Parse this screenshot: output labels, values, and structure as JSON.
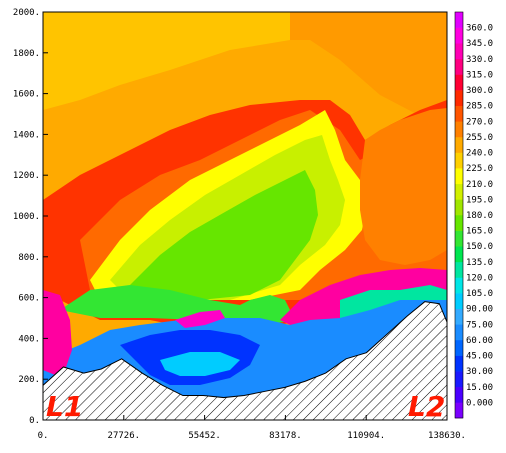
{
  "chart_data": {
    "type": "heatmap",
    "xlim": [
      0,
      138630
    ],
    "ylim": [
      0,
      2000
    ],
    "x_ticks": [
      "0.",
      "27726.",
      "55452.",
      "83178.",
      "110904.",
      "138630."
    ],
    "x_tick_values": [
      0,
      27726,
      55452,
      83178,
      110904,
      138630
    ],
    "y_ticks": [
      "0.",
      "200.",
      "400.",
      "600.",
      "800.",
      "1000.",
      "1200.",
      "1400.",
      "1600.",
      "1800.",
      "2000."
    ],
    "y_tick_values": [
      0,
      200,
      400,
      600,
      800,
      1000,
      1200,
      1400,
      1600,
      1800,
      2000
    ],
    "colorbar": {
      "levels": [
        "0.000",
        "15.00",
        "30.00",
        "45.00",
        "60.00",
        "75.00",
        "90.00",
        "105.0",
        "120.0",
        "135.0",
        "150.0",
        "165.0",
        "180.0",
        "195.0",
        "210.0",
        "225.0",
        "240.0",
        "255.0",
        "270.0",
        "285.0",
        "300.0",
        "315.0",
        "330.0",
        "345.0",
        "360.0"
      ],
      "colors": [
        "#7a00ff",
        "#4b00ff",
        "#1a1aff",
        "#0033ff",
        "#0066ff",
        "#1a8cff",
        "#33aaff",
        "#00ccff",
        "#00e6e6",
        "#00e6a0",
        "#00e650",
        "#33e633",
        "#66e600",
        "#a0e600",
        "#d2f000",
        "#ffff00",
        "#ffd000",
        "#ffaa00",
        "#ff8000",
        "#ff5500",
        "#ff2a00",
        "#ff0033",
        "#ff0080",
        "#ff00b4",
        "#ff00e0",
        "#e000ff"
      ]
    },
    "terrain": {
      "x": [
        0,
        7000,
        14000,
        20000,
        27000,
        34000,
        41000,
        48000,
        55000,
        62000,
        69000,
        76000,
        83000,
        90000,
        97000,
        104000,
        111000,
        118000,
        125000,
        131000,
        136000,
        138630
      ],
      "y": [
        170,
        260,
        230,
        250,
        300,
        230,
        170,
        120,
        120,
        110,
        120,
        140,
        160,
        190,
        230,
        300,
        330,
        420,
        510,
        580,
        570,
        480
      ]
    },
    "labels": {
      "left": "L1",
      "right": "L2"
    }
  }
}
